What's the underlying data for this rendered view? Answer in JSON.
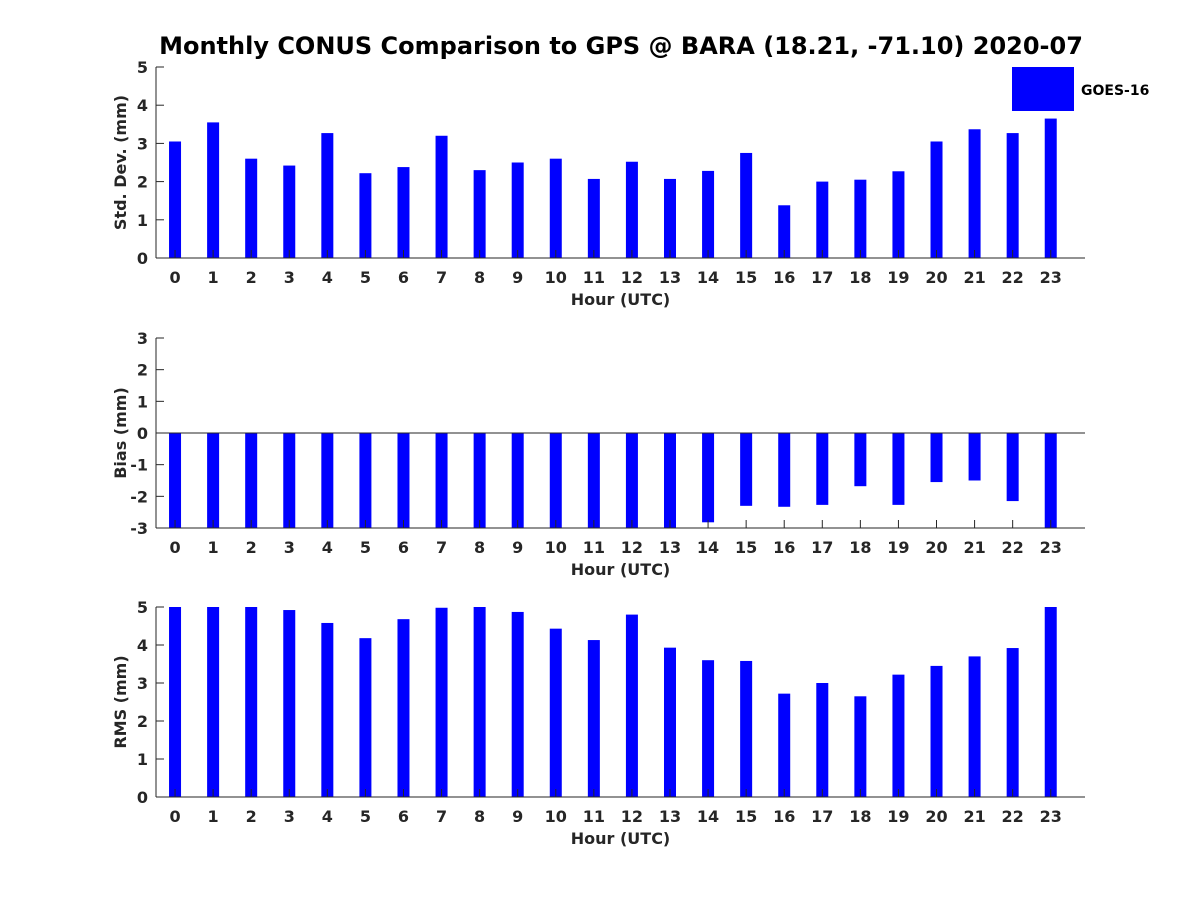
{
  "title": "Monthly CONUS Comparison to GPS @ BARA (18.21, -71.10) 2020-07",
  "legend": {
    "label": "GOES-16",
    "color": "#0000ff"
  },
  "chart_data": [
    {
      "type": "bar",
      "ylabel": "Std. Dev. (mm)",
      "xlabel": "Hour (UTC)",
      "ylim": [
        0,
        5
      ],
      "yticks": [
        0,
        1,
        2,
        3,
        4,
        5
      ],
      "categories": [
        "0",
        "1",
        "2",
        "3",
        "4",
        "5",
        "6",
        "7",
        "8",
        "9",
        "10",
        "11",
        "12",
        "13",
        "14",
        "15",
        "16",
        "17",
        "18",
        "19",
        "20",
        "21",
        "22",
        "23"
      ],
      "series": [
        {
          "name": "GOES-16",
          "values": [
            3.05,
            3.55,
            2.6,
            2.42,
            3.27,
            2.22,
            2.38,
            3.2,
            2.3,
            2.5,
            2.6,
            2.07,
            2.52,
            2.07,
            2.28,
            2.75,
            1.38,
            2.0,
            2.05,
            2.27,
            3.05,
            3.37,
            3.27,
            3.65
          ]
        }
      ],
      "legend": "top-right",
      "grid": false
    },
    {
      "type": "bar",
      "ylabel": "Bias (mm)",
      "xlabel": "Hour (UTC)",
      "ylim": [
        -3,
        3
      ],
      "yticks": [
        -3,
        -2,
        -1,
        0,
        1,
        2,
        3
      ],
      "categories": [
        "0",
        "1",
        "2",
        "3",
        "4",
        "5",
        "6",
        "7",
        "8",
        "9",
        "10",
        "11",
        "12",
        "13",
        "14",
        "15",
        "16",
        "17",
        "18",
        "19",
        "20",
        "21",
        "22",
        "23"
      ],
      "series": [
        {
          "name": "GOES-16",
          "values": [
            -3,
            -3,
            -3,
            -3,
            -3,
            -3,
            -3,
            -3,
            -3,
            -3,
            -3,
            -3,
            -3,
            -3,
            -2.82,
            -2.3,
            -2.33,
            -2.27,
            -1.68,
            -2.27,
            -1.55,
            -1.5,
            -2.15,
            -3
          ]
        }
      ],
      "grid": false
    },
    {
      "type": "bar",
      "ylabel": "RMS (mm)",
      "xlabel": "Hour (UTC)",
      "ylim": [
        0,
        5
      ],
      "yticks": [
        0,
        1,
        2,
        3,
        4,
        5
      ],
      "categories": [
        "0",
        "1",
        "2",
        "3",
        "4",
        "5",
        "6",
        "7",
        "8",
        "9",
        "10",
        "11",
        "12",
        "13",
        "14",
        "15",
        "16",
        "17",
        "18",
        "19",
        "20",
        "21",
        "22",
        "23"
      ],
      "series": [
        {
          "name": "GOES-16",
          "values": [
            5,
            5,
            5,
            4.92,
            4.58,
            4.18,
            4.68,
            4.98,
            5,
            4.87,
            4.43,
            4.13,
            4.8,
            3.93,
            3.6,
            3.58,
            2.72,
            3.0,
            2.65,
            3.22,
            3.45,
            3.7,
            3.92,
            5
          ]
        }
      ],
      "grid": false
    }
  ]
}
